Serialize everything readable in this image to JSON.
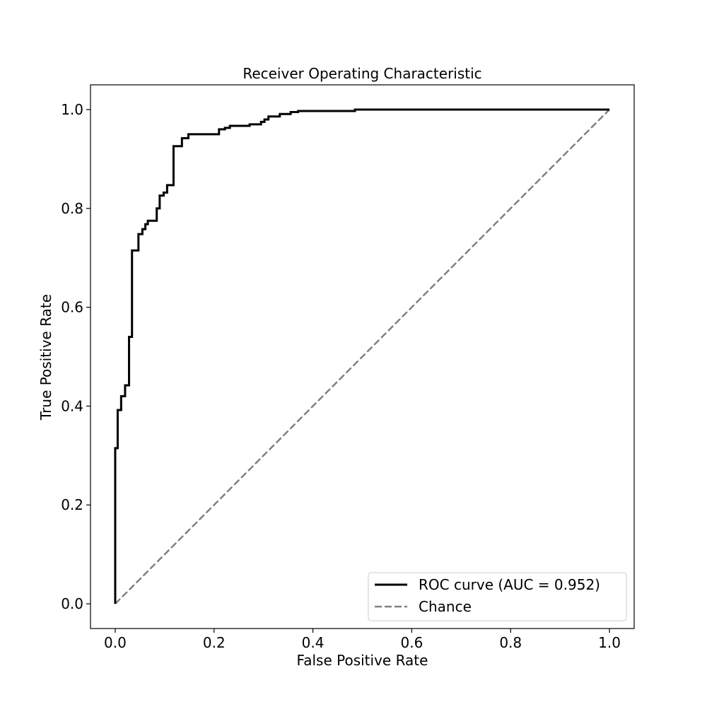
{
  "chart_data": {
    "type": "line",
    "title": "Receiver Operating Characteristic",
    "xlabel": "False Positive Rate",
    "ylabel": "True Positive Rate",
    "xlim": [
      -0.05,
      1.05
    ],
    "ylim": [
      -0.05,
      1.05
    ],
    "xticks": [
      0.0,
      0.2,
      0.4,
      0.6,
      0.8,
      1.0
    ],
    "yticks": [
      0.0,
      0.2,
      0.4,
      0.6,
      0.8,
      1.0
    ],
    "xtick_labels": [
      "0.0",
      "0.2",
      "0.4",
      "0.6",
      "0.8",
      "1.0"
    ],
    "ytick_labels": [
      "0.0",
      "0.2",
      "0.4",
      "0.6",
      "0.8",
      "1.0"
    ],
    "grid": false,
    "legend_position": "lower-right",
    "series": [
      {
        "name": "ROC curve (AUC = 0.952)",
        "style": "solid",
        "color": "#000000",
        "step": true,
        "x": [
          0.0,
          0.0,
          0.005,
          0.005,
          0.012,
          0.012,
          0.02,
          0.02,
          0.028,
          0.028,
          0.034,
          0.034,
          0.038,
          0.038,
          0.047,
          0.047,
          0.055,
          0.055,
          0.061,
          0.061,
          0.066,
          0.066,
          0.084,
          0.084,
          0.09,
          0.09,
          0.098,
          0.098,
          0.105,
          0.105,
          0.118,
          0.118,
          0.135,
          0.135,
          0.148,
          0.148,
          0.21,
          0.21,
          0.222,
          0.222,
          0.232,
          0.232,
          0.272,
          0.272,
          0.295,
          0.295,
          0.302,
          0.302,
          0.31,
          0.31,
          0.333,
          0.333,
          0.355,
          0.355,
          0.37,
          0.37,
          0.485,
          0.485,
          1.0
        ],
        "y": [
          0.0,
          0.315,
          0.315,
          0.392,
          0.392,
          0.42,
          0.42,
          0.442,
          0.442,
          0.54,
          0.54,
          0.715,
          0.715,
          0.715,
          0.715,
          0.748,
          0.748,
          0.758,
          0.758,
          0.768,
          0.768,
          0.775,
          0.775,
          0.8,
          0.8,
          0.826,
          0.826,
          0.832,
          0.832,
          0.847,
          0.847,
          0.926,
          0.926,
          0.942,
          0.942,
          0.95,
          0.95,
          0.96,
          0.96,
          0.963,
          0.963,
          0.967,
          0.967,
          0.97,
          0.97,
          0.975,
          0.975,
          0.98,
          0.98,
          0.986,
          0.986,
          0.991,
          0.991,
          0.995,
          0.995,
          0.997,
          0.997,
          1.0,
          1.0
        ]
      },
      {
        "name": "Chance",
        "style": "dashed",
        "color": "#808080",
        "x": [
          0.0,
          1.0
        ],
        "y": [
          0.0,
          1.0
        ]
      }
    ]
  }
}
